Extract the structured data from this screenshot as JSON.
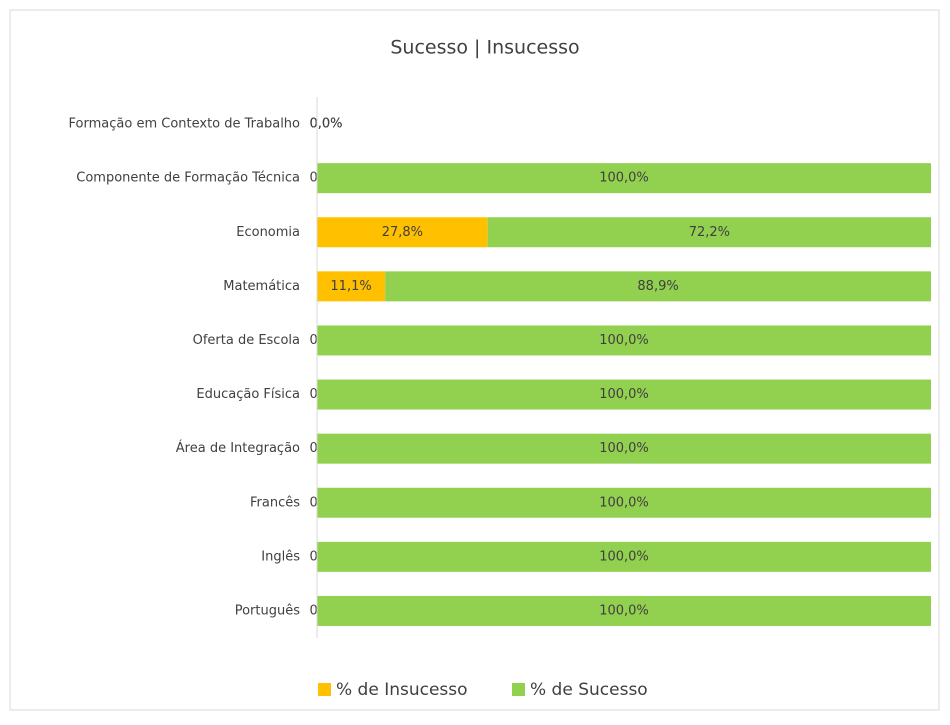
{
  "chart_data": {
    "type": "stacked-bar-horizontal",
    "title": "Sucesso | Insucesso",
    "categories": [
      "Formação em Contexto de Trabalho",
      "Componente de Formação Técnica",
      "Economia",
      "Matemática",
      "Oferta de Escola",
      "Educação Física",
      "Área de Integração",
      "Francês",
      "Inglês",
      "Português"
    ],
    "xlim": [
      0,
      100
    ],
    "legend": "bottom",
    "series": [
      {
        "name": "% de Insucesso",
        "color": "#ffc000",
        "values": [
          0,
          0,
          27.8,
          11.1,
          0,
          0,
          0,
          0,
          0,
          0
        ],
        "value_labels": [
          "0,0%",
          "0,0%",
          "27,8%",
          "11,1%",
          "0,0%",
          "0,0%",
          "0,0%",
          "0,0%",
          "0,0%",
          "0,0%"
        ]
      },
      {
        "name": "% de Sucesso",
        "color": "#92d050",
        "values": [
          0,
          100,
          72.2,
          88.9,
          100,
          100,
          100,
          100,
          100,
          100
        ],
        "value_labels": [
          "0,0%",
          "100,0%",
          "72,2%",
          "88,9%",
          "100,0%",
          "100,0%",
          "100,0%",
          "100,0%",
          "100,0%",
          "100,0%"
        ]
      }
    ]
  }
}
